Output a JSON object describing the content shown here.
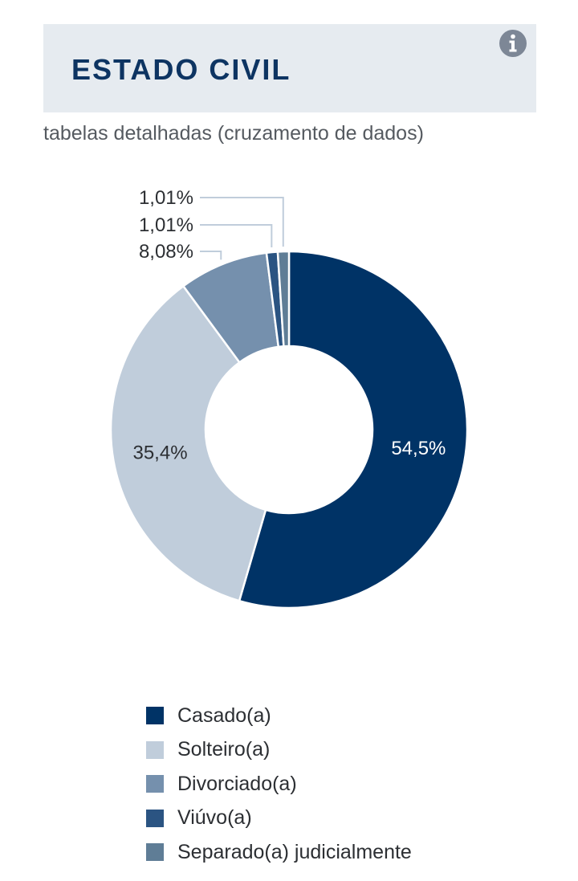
{
  "header": {
    "title": "ESTADO CIVIL",
    "info_icon": "info-icon"
  },
  "subtitle": "tabelas detalhadas (cruzamento de dados)",
  "colors": {
    "header_bg": "#e6ebf0",
    "title": "#0d3462",
    "info_icon": "#7d8796"
  },
  "chart_data": {
    "type": "pie",
    "donut": true,
    "series": [
      {
        "name": "Casado(a)",
        "value": 54.5,
        "label": "54,5%",
        "color": "#003366"
      },
      {
        "name": "Solteiro(a)",
        "value": 35.4,
        "label": "35,4%",
        "color": "#c0cddb"
      },
      {
        "name": "Divorciado(a)",
        "value": 8.08,
        "label": "8,08%",
        "color": "#7590ad"
      },
      {
        "name": "Viúvo(a)",
        "value": 1.01,
        "label": "1,01%",
        "color": "#2b5482"
      },
      {
        "name": "Separado(a) judicialmente",
        "value": 1.01,
        "label": "1,01%",
        "color": "#5f7d96"
      }
    ],
    "legend_position": "bottom"
  }
}
